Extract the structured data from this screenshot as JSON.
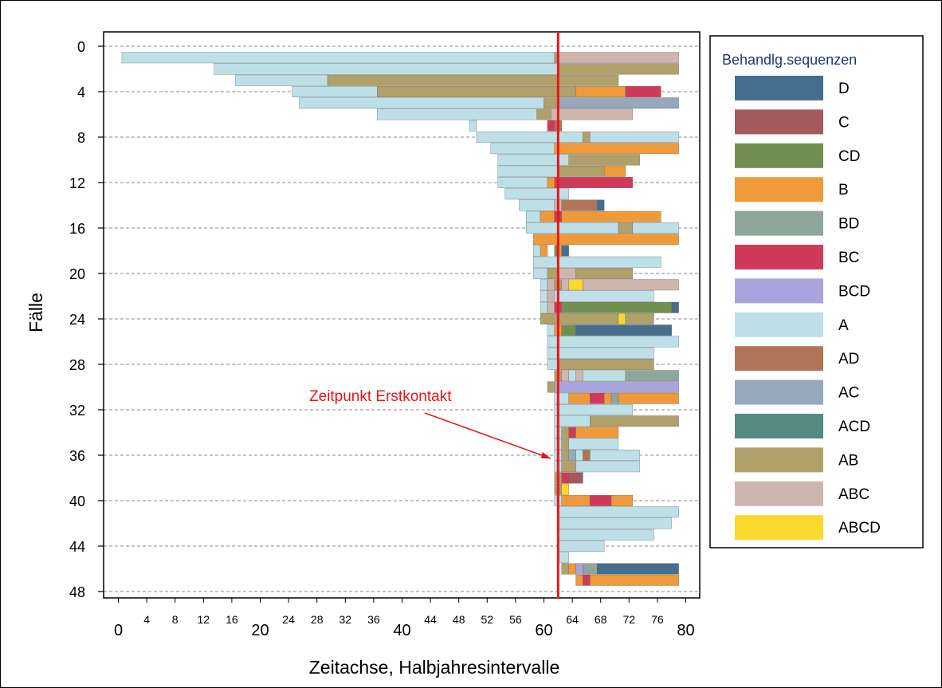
{
  "chart_data": {
    "type": "bar",
    "orientation": "horizontal-stacked-segments",
    "title": "",
    "xlabel": "Zeitachse, Halbjahresintervalle",
    "ylabel": "Fälle",
    "xlim": [
      -1,
      82
    ],
    "ylim": [
      49,
      -1.3
    ],
    "x_ticks_small": [
      4,
      8,
      12,
      16,
      24,
      28,
      32,
      36,
      44,
      48,
      52,
      56,
      64,
      68,
      72,
      76
    ],
    "x_ticks_large": [
      0,
      20,
      40,
      60,
      80
    ],
    "y_ticks": [
      0,
      4,
      8,
      12,
      16,
      20,
      24,
      28,
      32,
      36,
      40,
      44,
      48
    ],
    "grid": {
      "horizontal_dashed": true,
      "vertical": false
    },
    "legend": {
      "title": "Behandlg.sequenzen",
      "position": "right",
      "items": [
        {
          "name": "D",
          "color": "#466e8f"
        },
        {
          "name": "C",
          "color": "#a45a5e"
        },
        {
          "name": "CD",
          "color": "#728f52"
        },
        {
          "name": "B",
          "color": "#ee9a3a"
        },
        {
          "name": "BD",
          "color": "#8fa69a"
        },
        {
          "name": "BC",
          "color": "#d1395b"
        },
        {
          "name": "BCD",
          "color": "#a9a4db"
        },
        {
          "name": "A",
          "color": "#bde0e8"
        },
        {
          "name": "AD",
          "color": "#b07556"
        },
        {
          "name": "AC",
          "color": "#96a8bb"
        },
        {
          "name": "ACD",
          "color": "#538a83"
        },
        {
          "name": "AB",
          "color": "#b0a06a"
        },
        {
          "name": "ABC",
          "color": "#cfb5b0"
        },
        {
          "name": "ABCD",
          "color": "#fbd82e"
        }
      ]
    },
    "reference_line": {
      "x": 62,
      "color": "#e8161a"
    },
    "annotation": {
      "text": "Zeitpunkt Erstkontakt",
      "color": "#e8161a",
      "points_to": {
        "x": 61.5,
        "y": 36
      }
    },
    "series": [
      {
        "case": 1,
        "segments": [
          [
            0.5,
            61.5,
            "A"
          ],
          [
            61.5,
            62,
            "AB"
          ],
          [
            62,
            79,
            "ABC"
          ]
        ]
      },
      {
        "case": 2,
        "segments": [
          [
            13.5,
            62,
            "A"
          ],
          [
            62,
            79,
            "AB"
          ]
        ]
      },
      {
        "case": 3,
        "segments": [
          [
            16.5,
            29.5,
            "A"
          ],
          [
            29.5,
            62,
            "AB"
          ],
          [
            62,
            70.5,
            "AB"
          ]
        ]
      },
      {
        "case": 4,
        "segments": [
          [
            24.5,
            36.5,
            "A"
          ],
          [
            36.5,
            62,
            "AB"
          ],
          [
            62,
            64.5,
            "AB"
          ],
          [
            64.5,
            71.5,
            "B"
          ],
          [
            71.5,
            76.5,
            "BC"
          ]
        ]
      },
      {
        "case": 5,
        "segments": [
          [
            25.5,
            60,
            "A"
          ],
          [
            60,
            62,
            "AB"
          ],
          [
            62,
            79,
            "AC"
          ]
        ]
      },
      {
        "case": 6,
        "segments": [
          [
            36.5,
            59,
            "A"
          ],
          [
            59,
            61,
            "AB"
          ],
          [
            61,
            62,
            "ABC"
          ],
          [
            62,
            72.5,
            "ABC"
          ]
        ]
      },
      {
        "case": 7,
        "segments": [
          [
            49.5,
            50.5,
            "A"
          ],
          [
            60.5,
            61.5,
            "BC"
          ],
          [
            61.5,
            62.5,
            "AD"
          ]
        ]
      },
      {
        "case": 8,
        "segments": [
          [
            50.5,
            62,
            "A"
          ],
          [
            62,
            65.5,
            "A"
          ],
          [
            65.5,
            66.5,
            "AB"
          ],
          [
            66.5,
            79,
            "A"
          ]
        ]
      },
      {
        "case": 9,
        "segments": [
          [
            52.5,
            61.5,
            "A"
          ],
          [
            61.5,
            79,
            "B"
          ]
        ]
      },
      {
        "case": 10,
        "segments": [
          [
            53.5,
            62,
            "A"
          ],
          [
            62,
            63.5,
            "A"
          ],
          [
            63.5,
            73.5,
            "AB"
          ]
        ]
      },
      {
        "case": 11,
        "segments": [
          [
            53.5,
            62,
            "A"
          ],
          [
            62,
            68.5,
            "AB"
          ],
          [
            68.5,
            71.5,
            "B"
          ]
        ]
      },
      {
        "case": 12,
        "segments": [
          [
            53.5,
            60.5,
            "A"
          ],
          [
            60.5,
            61.5,
            "B"
          ],
          [
            61.5,
            72.5,
            "BC"
          ]
        ]
      },
      {
        "case": 13,
        "segments": [
          [
            54.5,
            62,
            "A"
          ],
          [
            62,
            63.5,
            "A"
          ]
        ]
      },
      {
        "case": 14,
        "segments": [
          [
            56.5,
            61.5,
            "A"
          ],
          [
            61.5,
            62.5,
            "ABC"
          ],
          [
            62.5,
            67.5,
            "AD"
          ],
          [
            67.5,
            68.5,
            "D"
          ]
        ]
      },
      {
        "case": 15,
        "segments": [
          [
            57.5,
            59.5,
            "A"
          ],
          [
            59.5,
            61.5,
            "B"
          ],
          [
            61.5,
            62.5,
            "BC"
          ],
          [
            62.5,
            76.5,
            "B"
          ]
        ]
      },
      {
        "case": 16,
        "segments": [
          [
            57.5,
            62,
            "A"
          ],
          [
            62,
            70.5,
            "A"
          ],
          [
            70.5,
            72.5,
            "AB"
          ],
          [
            72.5,
            79,
            "A"
          ]
        ]
      },
      {
        "case": 17,
        "segments": [
          [
            58.5,
            79,
            "B"
          ]
        ]
      },
      {
        "case": 18,
        "segments": [
          [
            58.5,
            59.5,
            "A"
          ],
          [
            59.5,
            60.5,
            "B"
          ],
          [
            61.5,
            62,
            "CD"
          ],
          [
            62,
            62.5,
            "B"
          ],
          [
            62.5,
            63.5,
            "D"
          ]
        ]
      },
      {
        "case": 19,
        "segments": [
          [
            58.5,
            62,
            "A"
          ],
          [
            62,
            76.5,
            "A"
          ]
        ]
      },
      {
        "case": 20,
        "segments": [
          [
            58.5,
            60.5,
            "A"
          ],
          [
            60.5,
            62,
            "AB"
          ],
          [
            62,
            64.5,
            "ABC"
          ],
          [
            64.5,
            72.5,
            "AB"
          ]
        ]
      },
      {
        "case": 21,
        "segments": [
          [
            59.5,
            60.5,
            "A"
          ],
          [
            60.5,
            61.5,
            "ABC"
          ],
          [
            61.5,
            62.5,
            "AB"
          ],
          [
            62.5,
            63.5,
            "ABC"
          ],
          [
            63.5,
            65.5,
            "ABCD"
          ],
          [
            65.5,
            79,
            "ABC"
          ]
        ]
      },
      {
        "case": 22,
        "segments": [
          [
            59.5,
            60.5,
            "A"
          ],
          [
            60.5,
            61.5,
            "ABC"
          ],
          [
            61.5,
            62,
            "A"
          ],
          [
            62,
            75.5,
            "A"
          ]
        ]
      },
      {
        "case": 23,
        "segments": [
          [
            59.5,
            60.5,
            "A"
          ],
          [
            60.5,
            61.5,
            "ABC"
          ],
          [
            61.5,
            62.5,
            "BC"
          ],
          [
            62.5,
            78,
            "CD"
          ],
          [
            78,
            79,
            "D"
          ]
        ]
      },
      {
        "case": 24,
        "segments": [
          [
            59.5,
            62,
            "AB"
          ],
          [
            62,
            70.5,
            "AB"
          ],
          [
            70.5,
            71.5,
            "ABCD"
          ],
          [
            71.5,
            75.5,
            "AB"
          ]
        ]
      },
      {
        "case": 25,
        "segments": [
          [
            60.5,
            61.5,
            "A"
          ],
          [
            61.5,
            62.5,
            "B"
          ],
          [
            62.5,
            64.5,
            "CD"
          ],
          [
            64.5,
            78,
            "D"
          ]
        ]
      },
      {
        "case": 26,
        "segments": [
          [
            60.5,
            62,
            "A"
          ],
          [
            62,
            79,
            "A"
          ]
        ]
      },
      {
        "case": 27,
        "segments": [
          [
            60.5,
            62,
            "A"
          ],
          [
            62,
            75.5,
            "A"
          ]
        ]
      },
      {
        "case": 28,
        "segments": [
          [
            60.5,
            62,
            "A"
          ],
          [
            62,
            75.5,
            "AB"
          ]
        ]
      },
      {
        "case": 29,
        "segments": [
          [
            61.5,
            62.5,
            "AB"
          ],
          [
            62.5,
            63.5,
            "ABC"
          ],
          [
            63.5,
            64.5,
            "A"
          ],
          [
            64.5,
            65.5,
            "ABC"
          ],
          [
            65.5,
            71.5,
            "A"
          ],
          [
            71.5,
            79,
            "BD"
          ]
        ]
      },
      {
        "case": 30,
        "segments": [
          [
            60.5,
            61.5,
            "AB"
          ],
          [
            61.5,
            79,
            "BCD"
          ]
        ]
      },
      {
        "case": 31,
        "segments": [
          [
            61.5,
            63.5,
            "A"
          ],
          [
            63.5,
            66.5,
            "B"
          ],
          [
            66.5,
            68.5,
            "BC"
          ],
          [
            68.5,
            69.5,
            "B"
          ],
          [
            69.5,
            70.5,
            "BD"
          ],
          [
            70.5,
            79,
            "B"
          ]
        ]
      },
      {
        "case": 32,
        "segments": [
          [
            61.5,
            72.5,
            "A"
          ]
        ]
      },
      {
        "case": 33,
        "segments": [
          [
            61.5,
            66.5,
            "A"
          ],
          [
            66.5,
            79,
            "AB"
          ]
        ]
      },
      {
        "case": 34,
        "segments": [
          [
            61.5,
            62.5,
            "A"
          ],
          [
            62.5,
            63.5,
            "AB"
          ],
          [
            63.5,
            64.5,
            "BC"
          ],
          [
            64.5,
            70.5,
            "B"
          ]
        ]
      },
      {
        "case": 35,
        "segments": [
          [
            61.5,
            62.5,
            "A"
          ],
          [
            62.5,
            63.5,
            "AB"
          ],
          [
            63.5,
            70.5,
            "A"
          ]
        ]
      },
      {
        "case": 36,
        "segments": [
          [
            61.5,
            62.5,
            "A"
          ],
          [
            62.5,
            63.5,
            "AB"
          ],
          [
            63.5,
            64.5,
            "AC"
          ],
          [
            64.5,
            65.5,
            "A"
          ],
          [
            65.5,
            66.5,
            "AD"
          ],
          [
            66.5,
            73.5,
            "A"
          ]
        ]
      },
      {
        "case": 37,
        "segments": [
          [
            61.5,
            62.5,
            "A"
          ],
          [
            62.5,
            64.5,
            "AB"
          ],
          [
            64.5,
            73.5,
            "A"
          ]
        ]
      },
      {
        "case": 38,
        "segments": [
          [
            61.5,
            62.5,
            "AB"
          ],
          [
            62.5,
            63.5,
            "BC"
          ],
          [
            63.5,
            65.5,
            "C"
          ]
        ]
      },
      {
        "case": 39,
        "segments": [
          [
            61.5,
            62.5,
            "AB"
          ],
          [
            62.5,
            63.5,
            "ABCD"
          ]
        ]
      },
      {
        "case": 40,
        "segments": [
          [
            61.5,
            62.5,
            "A"
          ],
          [
            62.5,
            66.5,
            "B"
          ],
          [
            66.5,
            69.5,
            "BC"
          ],
          [
            69.5,
            72.5,
            "B"
          ]
        ]
      },
      {
        "case": 41,
        "segments": [
          [
            62,
            79,
            "A"
          ]
        ]
      },
      {
        "case": 42,
        "segments": [
          [
            62,
            78,
            "A"
          ]
        ]
      },
      {
        "case": 43,
        "segments": [
          [
            62,
            75.5,
            "A"
          ]
        ]
      },
      {
        "case": 44,
        "segments": [
          [
            62,
            68.5,
            "A"
          ]
        ]
      },
      {
        "case": 45,
        "segments": [
          [
            62,
            63.5,
            "A"
          ]
        ]
      },
      {
        "case": 46,
        "segments": [
          [
            62.5,
            63.5,
            "AB"
          ],
          [
            63.5,
            64.5,
            "B"
          ],
          [
            64.5,
            65.5,
            "BCD"
          ],
          [
            65.5,
            67.5,
            "BD"
          ],
          [
            67.5,
            79,
            "D"
          ]
        ]
      },
      {
        "case": 47,
        "segments": [
          [
            64.5,
            65.5,
            "B"
          ],
          [
            65.5,
            66.5,
            "BC"
          ],
          [
            66.5,
            79,
            "B"
          ]
        ]
      }
    ]
  }
}
